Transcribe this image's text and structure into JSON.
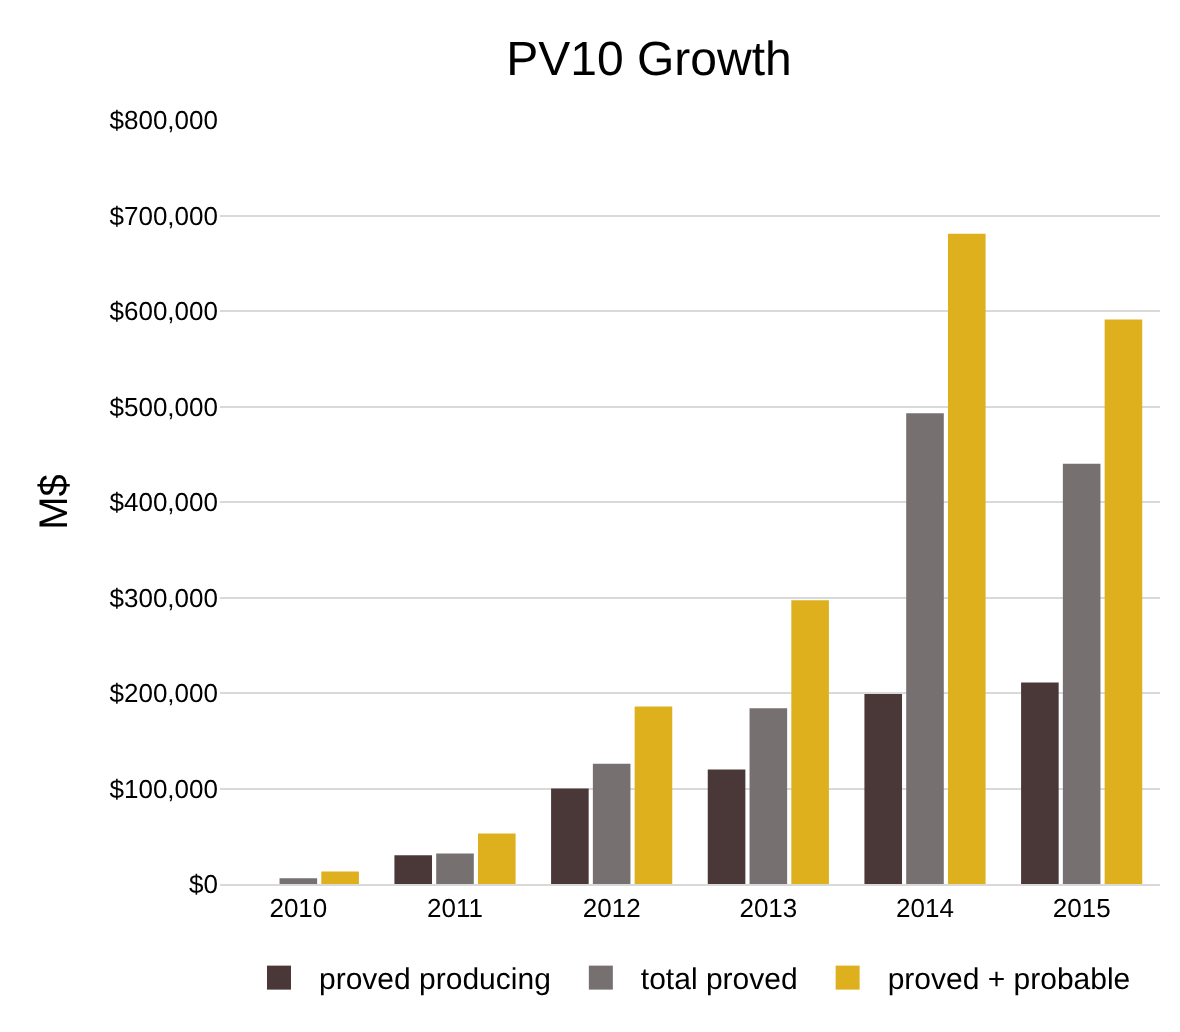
{
  "chart_data": {
    "type": "bar",
    "title": "PV10 Growth",
    "ylabel": "M$",
    "categories": [
      "2010",
      "2011",
      "2012",
      "2013",
      "2014",
      "2015"
    ],
    "series": [
      {
        "name": "proved producing",
        "color": "#4a3838",
        "values": [
          0,
          30000,
          100000,
          120000,
          199000,
          211000
        ]
      },
      {
        "name": "total proved",
        "color": "#767170",
        "values": [
          6000,
          32000,
          126000,
          184000,
          493000,
          440000
        ]
      },
      {
        "name": "proved + probable",
        "color": "#deb01e",
        "values": [
          13000,
          53000,
          186000,
          297000,
          681000,
          591000
        ]
      }
    ],
    "ylim": [
      0,
      800000
    ],
    "yticks": [
      {
        "value": 0,
        "label": "$0"
      },
      {
        "value": 100000,
        "label": "$100,000"
      },
      {
        "value": 200000,
        "label": "$200,000"
      },
      {
        "value": 300000,
        "label": "$300,000"
      },
      {
        "value": 400000,
        "label": "$400,000"
      },
      {
        "value": 500000,
        "label": "$500,000"
      },
      {
        "value": 600000,
        "label": "$600,000"
      },
      {
        "value": 700000,
        "label": "$700,000"
      },
      {
        "value": 800000,
        "label": "$800,000"
      }
    ],
    "grid": "y",
    "legend": "bottom"
  }
}
